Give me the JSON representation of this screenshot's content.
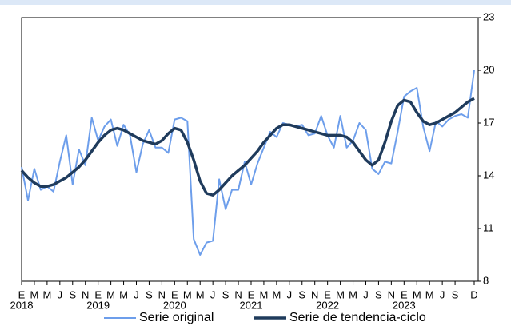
{
  "chart_data": {
    "type": "line",
    "categories": [
      "E",
      null,
      "M",
      null,
      "M",
      null,
      "J",
      null,
      "S",
      null,
      "N",
      null,
      "E",
      null,
      "M",
      null,
      "M",
      null,
      "J",
      null,
      "S",
      null,
      "N",
      null,
      "E",
      null,
      "M",
      null,
      "M",
      null,
      "J",
      null,
      "S",
      null,
      "N",
      null,
      "E",
      null,
      "M",
      null,
      "M",
      null,
      "J",
      null,
      "S",
      null,
      "N",
      null,
      "E",
      null,
      "M",
      null,
      "M",
      null,
      "J",
      null,
      "S",
      null,
      "N",
      null,
      "E",
      null,
      "M",
      null,
      "M",
      null,
      "J",
      null,
      "S",
      null,
      null,
      "D"
    ],
    "year_labels": [
      "2018",
      "2019",
      "2020",
      "2021",
      "2022",
      "2023"
    ],
    "series": [
      {
        "name": "Serie original",
        "color": "#6d9eeb",
        "width": 2,
        "values": [
          14.5,
          12.6,
          14.4,
          13.2,
          13.4,
          13.1,
          14.8,
          16.3,
          13.5,
          15.5,
          14.6,
          17.3,
          16.0,
          16.8,
          17.2,
          15.7,
          16.9,
          16.3,
          14.2,
          15.8,
          16.6,
          15.6,
          15.6,
          15.3,
          17.2,
          17.3,
          17.1,
          10.4,
          9.5,
          10.2,
          10.3,
          13.8,
          12.1,
          13.2,
          13.2,
          14.8,
          13.5,
          14.7,
          15.6,
          16.5,
          16.2,
          17.0,
          16.9,
          16.8,
          16.9,
          16.3,
          16.4,
          17.4,
          16.3,
          15.6,
          17.4,
          15.6,
          16.0,
          17.0,
          16.6,
          14.4,
          14.1,
          14.8,
          14.7,
          16.5,
          18.5,
          18.8,
          19.0,
          16.8,
          15.4,
          17.1,
          16.8,
          17.2,
          17.4,
          17.5,
          17.3,
          20.0
        ]
      },
      {
        "name": "Serie de tendencia-ciclo",
        "color": "#1f3b5c",
        "width": 3.5,
        "values": [
          14.3,
          13.9,
          13.6,
          13.4,
          13.4,
          13.5,
          13.7,
          13.9,
          14.2,
          14.5,
          14.9,
          15.4,
          15.9,
          16.3,
          16.6,
          16.7,
          16.6,
          16.4,
          16.2,
          16.0,
          15.9,
          15.8,
          16.0,
          16.4,
          16.7,
          16.6,
          15.9,
          14.9,
          13.7,
          13.0,
          12.9,
          13.2,
          13.6,
          14.0,
          14.3,
          14.6,
          15.0,
          15.4,
          15.9,
          16.3,
          16.7,
          16.9,
          16.9,
          16.8,
          16.7,
          16.6,
          16.5,
          16.4,
          16.3,
          16.3,
          16.3,
          16.2,
          15.9,
          15.4,
          14.9,
          14.6,
          14.9,
          15.9,
          17.1,
          18.0,
          18.3,
          18.2,
          17.6,
          17.1,
          16.9,
          17.0,
          17.2,
          17.4,
          17.6,
          17.9,
          18.2,
          18.4
        ]
      }
    ],
    "ylim": [
      8,
      23
    ],
    "yticks": [
      8,
      11,
      14,
      17,
      20,
      23
    ],
    "y_axis_side": "right",
    "grid": false
  }
}
